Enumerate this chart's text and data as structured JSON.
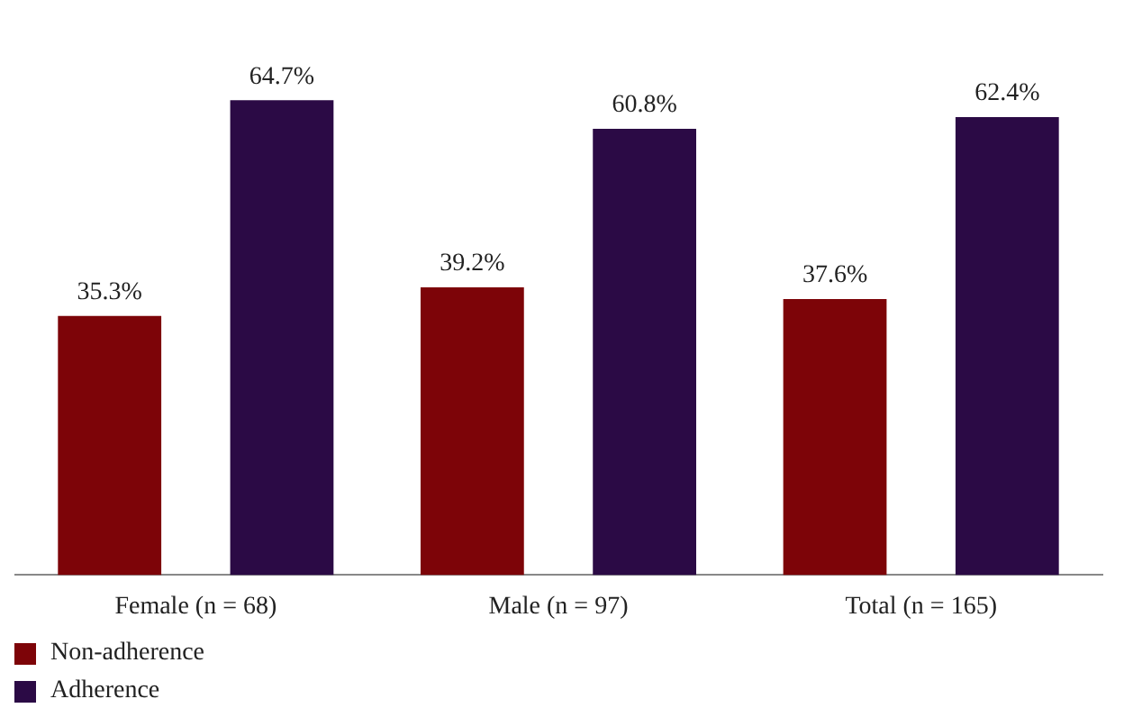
{
  "chart_data": {
    "type": "bar",
    "categories": [
      "Female (n = 68)",
      "Male (n = 97)",
      "Total (n = 165)"
    ],
    "series": [
      {
        "name": "Non-adherence",
        "color": "#7d0408",
        "values": [
          35.3,
          39.2,
          37.6
        ],
        "value_labels": [
          "35.3%",
          "39.2%",
          "37.6%"
        ]
      },
      {
        "name": "Adherence",
        "color": "#2b0a45",
        "values": [
          64.7,
          60.8,
          62.4
        ],
        "value_labels": [
          "64.7%",
          "60.8%",
          "62.4%"
        ]
      }
    ],
    "grid": false,
    "legend": "bottom left"
  }
}
